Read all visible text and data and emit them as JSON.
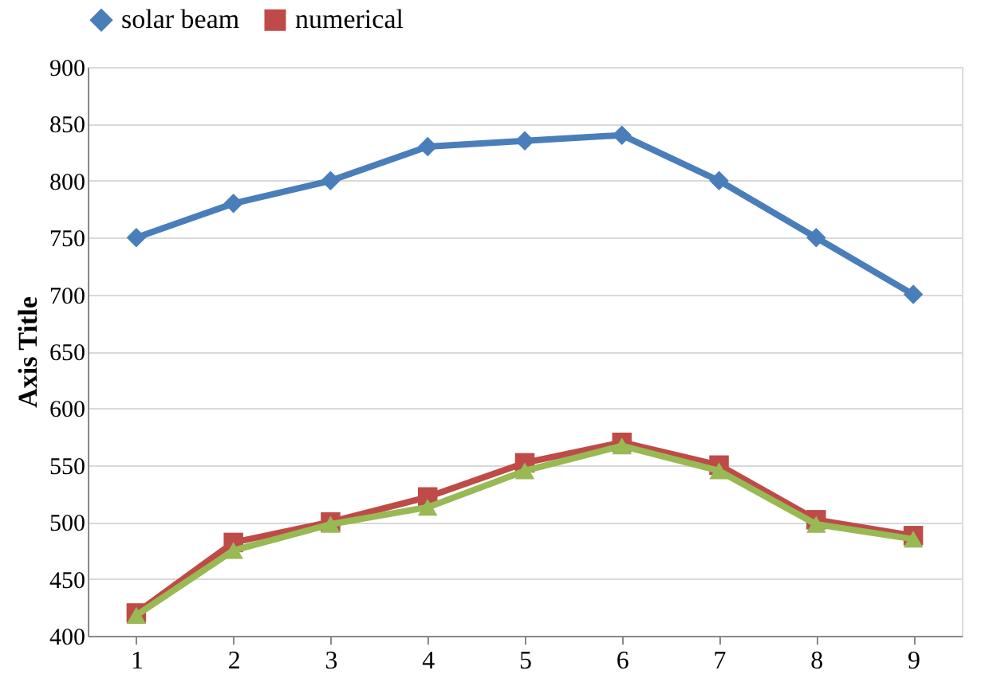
{
  "chart_data": {
    "type": "line",
    "ylabel": "Axis Title",
    "categories": [
      "1",
      "2",
      "3",
      "4",
      "5",
      "6",
      "7",
      "8",
      "9"
    ],
    "series": [
      {
        "name": "solar beam",
        "color": "#4a7ebb",
        "marker": "diamond",
        "values": [
          750,
          780,
          800,
          830,
          835,
          840,
          800,
          750,
          700
        ]
      },
      {
        "name": "numerical",
        "color": "#be4b48",
        "marker": "square",
        "values": [
          420,
          482,
          500,
          522,
          552,
          570,
          550,
          502,
          488
        ]
      },
      {
        "color": "#98b954",
        "marker": "triangle",
        "values": [
          418,
          475,
          498,
          513,
          545,
          567,
          545,
          498,
          485
        ]
      }
    ],
    "ylim": [
      400,
      900
    ],
    "yticks": [
      400,
      450,
      500,
      550,
      600,
      650,
      700,
      750,
      800,
      850,
      900
    ],
    "grid": "y",
    "legend": "top",
    "line_style": "solid"
  }
}
